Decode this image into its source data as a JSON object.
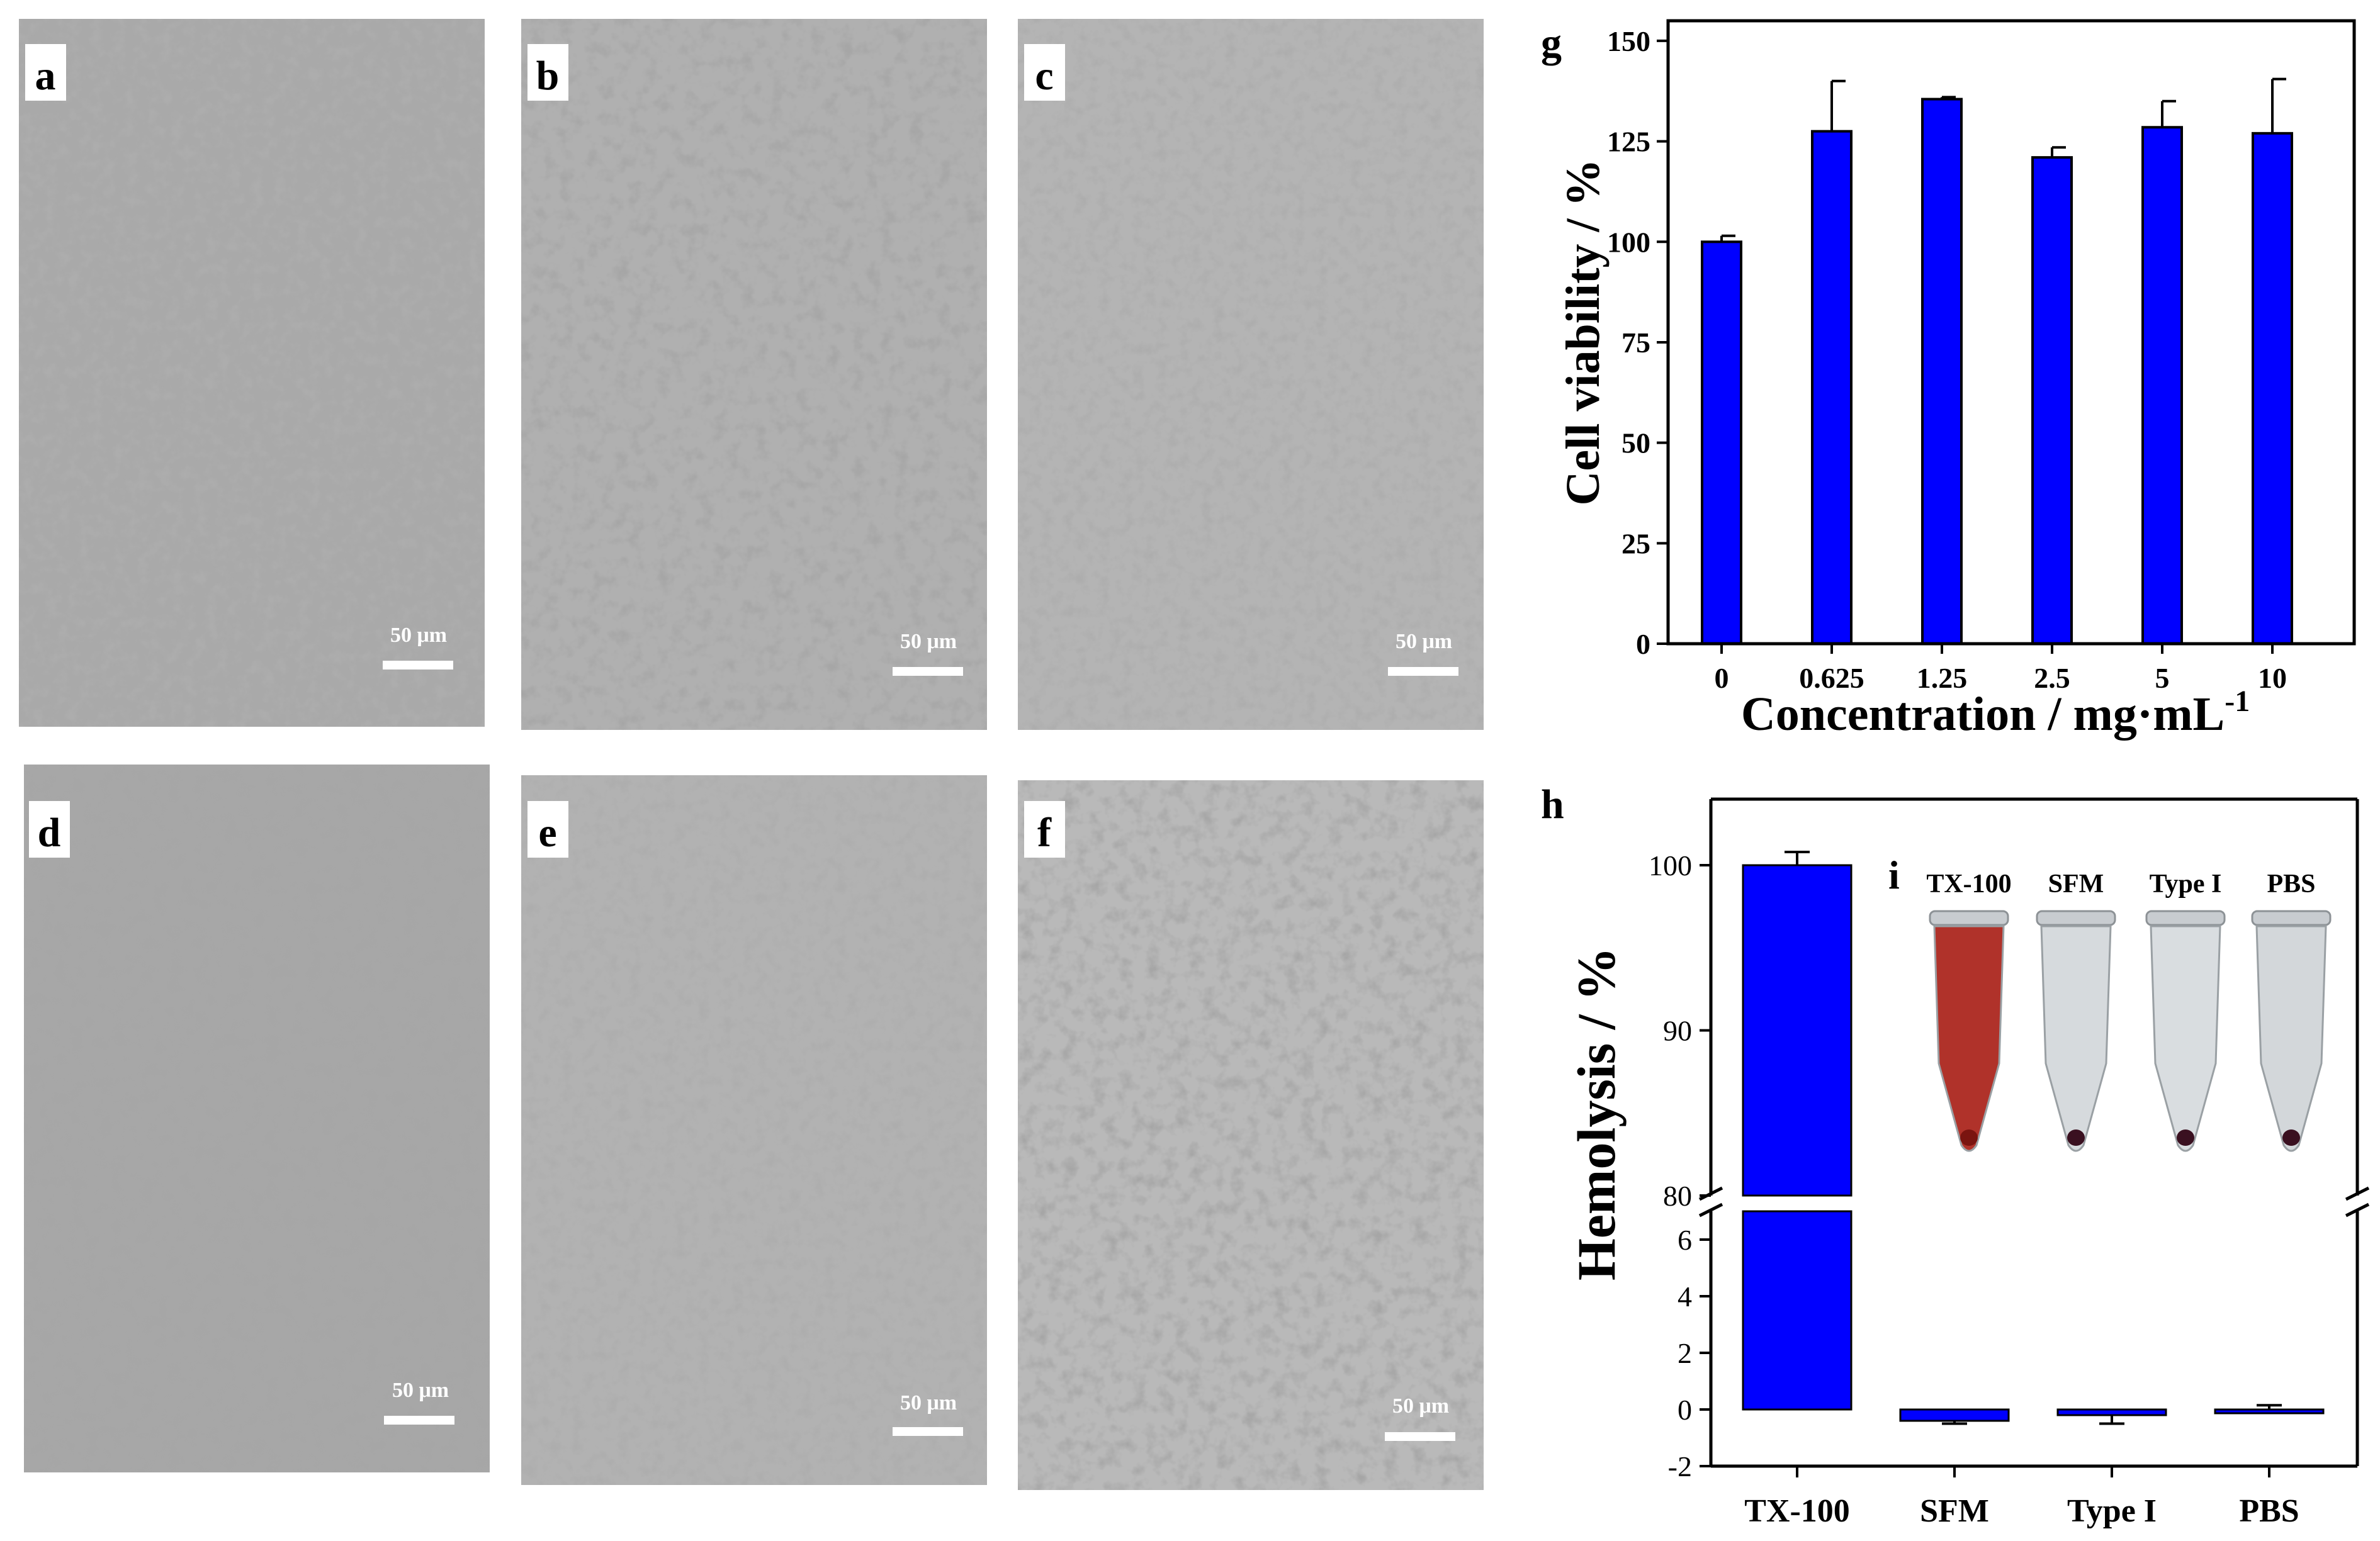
{
  "micrographs": [
    {
      "letter": "a",
      "scale_bar": "50 μm"
    },
    {
      "letter": "b",
      "scale_bar": "50 μm"
    },
    {
      "letter": "c",
      "scale_bar": "50 μm"
    },
    {
      "letter": "d",
      "scale_bar": "50 μm"
    },
    {
      "letter": "e",
      "scale_bar": "50 μm"
    },
    {
      "letter": "f",
      "scale_bar": "50 μm"
    }
  ],
  "chart_data": [
    {
      "panel": "g",
      "type": "bar",
      "categories": [
        "0",
        "0.625",
        "1.25",
        "2.5",
        "5",
        "10"
      ],
      "values": [
        100,
        127.5,
        135.5,
        121,
        128.5,
        127
      ],
      "errors": [
        1.5,
        12.5,
        0.5,
        2.5,
        6.5,
        13.5
      ],
      "xlabel": "Concentration / mg·mL",
      "xlabel_sup": "-1",
      "ylabel": "Cell viability / %",
      "ylim": [
        0,
        155
      ],
      "yticks": [
        0,
        25,
        50,
        75,
        100,
        125,
        150
      ],
      "bar_color": "#0000ff"
    },
    {
      "panel": "h",
      "type": "bar",
      "categories": [
        "TX-100",
        "SFM",
        "Type I",
        "PBS"
      ],
      "values": [
        100,
        -0.4,
        -0.2,
        0.0
      ],
      "errors": [
        0.8,
        0.1,
        0.3,
        0.15
      ],
      "ylabel": "Hemolysis / %",
      "broken_axis": true,
      "ylim_lower": [
        -2,
        7
      ],
      "ylim_upper": [
        80,
        104
      ],
      "yticks_lower": [
        -2,
        0,
        2,
        4,
        6
      ],
      "yticks_upper": [
        80,
        90,
        100
      ],
      "bar_color": "#0000ff"
    }
  ],
  "inset": {
    "letter": "i",
    "tubes": [
      {
        "label": "TX-100",
        "liquid": "#b0322a"
      },
      {
        "label": "SFM",
        "liquid": "#d6dadd"
      },
      {
        "label": "Type I",
        "liquid": "#d9dde0"
      },
      {
        "label": "PBS",
        "liquid": "#d3d7da"
      }
    ]
  }
}
